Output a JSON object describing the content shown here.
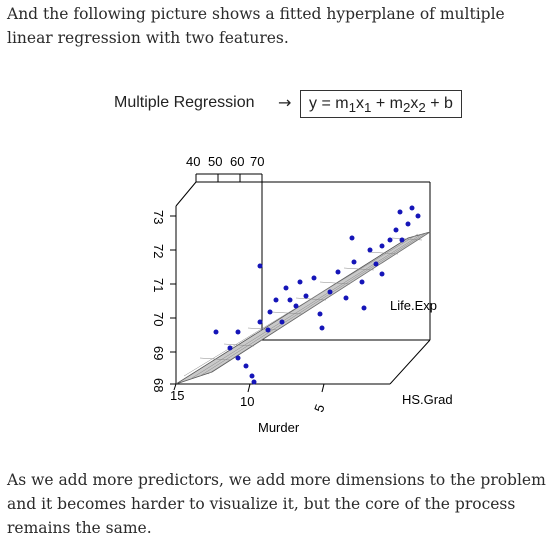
{
  "intro_text": "And the following picture shows a fitted hyperplane of multiple linear regression with two features.",
  "outro_text": "As we add more predictors, we add more dimensions to the problem and it becomes harder to visualize it, but the core of the process remains the same.",
  "figure": {
    "header": "Multiple Regression",
    "arrow": "→",
    "formula_parts": [
      "y = m",
      "1",
      "x",
      "1",
      " + m",
      "2",
      "x",
      "2",
      " + b"
    ],
    "top_ticks": [
      "40",
      "50",
      "60",
      "70"
    ],
    "left_ticks": [
      "73",
      "72",
      "71",
      "70",
      "69",
      "68"
    ],
    "front_ticks": [
      "15",
      "10",
      "5"
    ],
    "life_exp_label": "Life.Exp",
    "hs_grad_label": "HS.Grad",
    "murder_label": "Murder",
    "colors": {
      "points": "#1515b8",
      "plane": "#b8b8b8"
    }
  }
}
